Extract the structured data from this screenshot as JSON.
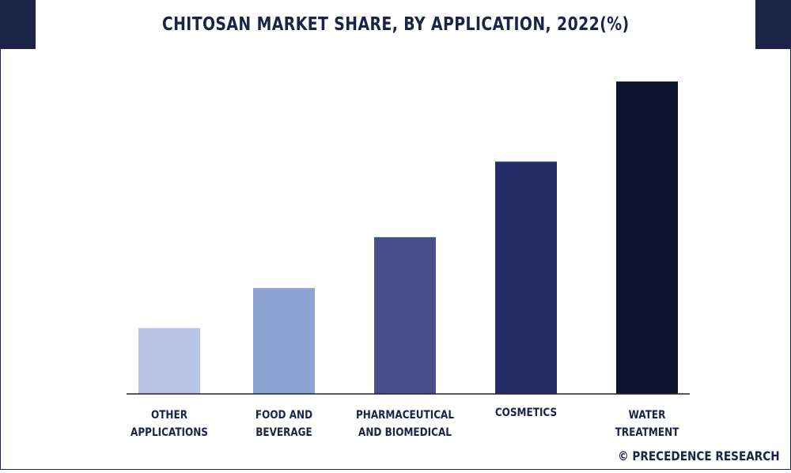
{
  "chart_data": {
    "type": "bar",
    "title": "CHITOSAN MARKET SHARE, BY APPLICATION, 2022(%)",
    "categories": [
      [
        "OTHER",
        "APPLICATIONS"
      ],
      [
        "FOOD AND",
        "BEVERAGE"
      ],
      [
        "PHARMACEUTICAL",
        "AND BIOMEDICAL"
      ],
      [
        "COSMETICS"
      ],
      [
        "WATER",
        "TREATMENT"
      ]
    ],
    "values": [
      11.5,
      18.5,
      27.4,
      40.6,
      54.6
    ],
    "colors": [
      "#b8c4e6",
      "#8da3d4",
      "#45508a",
      "#262d66",
      "#0b1330"
    ],
    "ylim": [
      0,
      60
    ],
    "grid": false,
    "legend": "none",
    "xlabel": "",
    "ylabel": ""
  },
  "brand": {
    "text": "© PRECEDENCE RESEARCH"
  }
}
